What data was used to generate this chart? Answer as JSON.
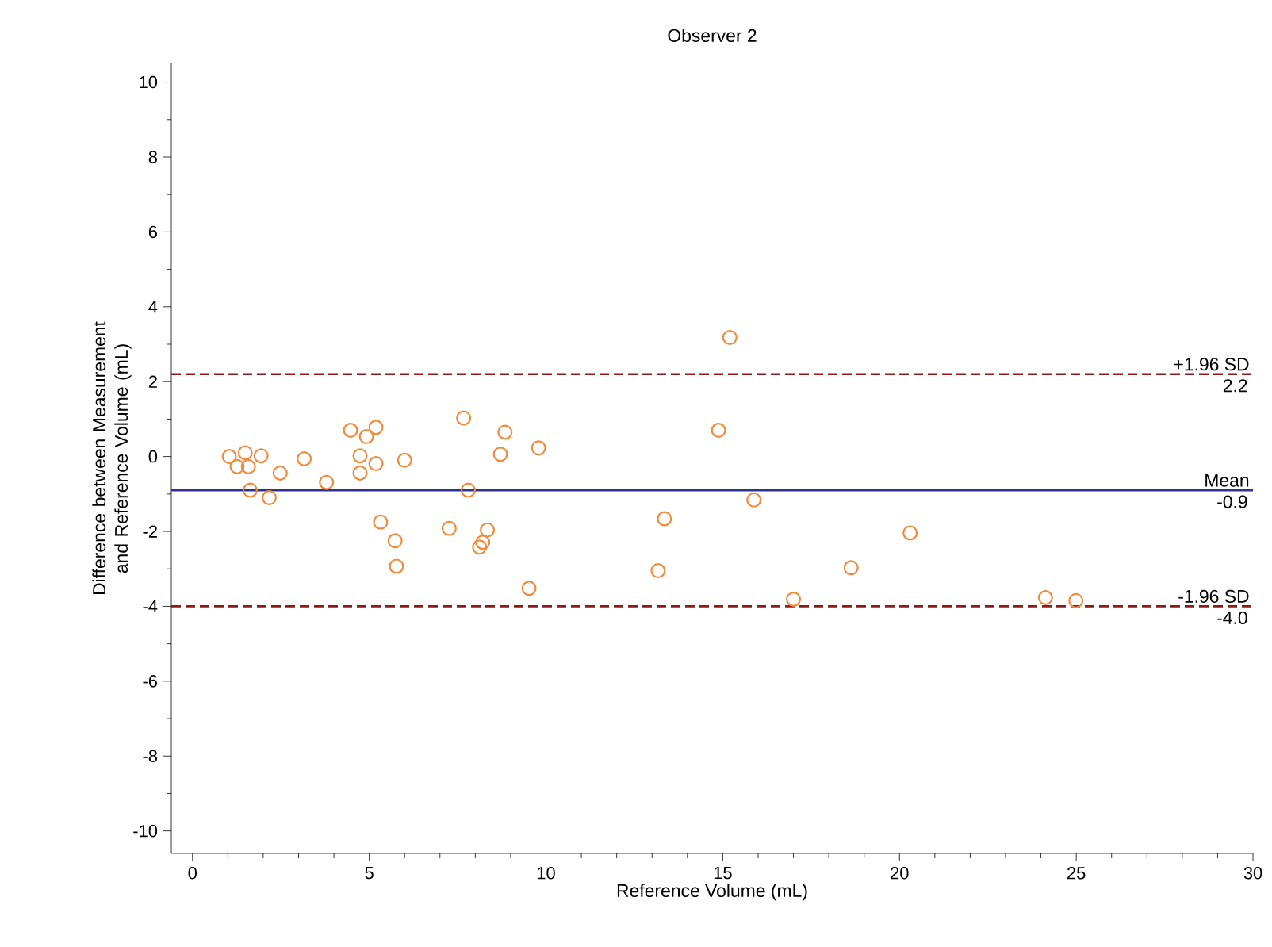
{
  "chart_data": {
    "type": "scatter",
    "title": "Observer 2",
    "xlabel": "Reference Volume (mL)",
    "ylabel": "Difference between Measurement and Reference Volume (mL)",
    "x": [
      1.04,
      1.26,
      1.49,
      1.58,
      1.63,
      1.94,
      2.17,
      2.48,
      3.16,
      3.79,
      4.47,
      4.74,
      4.74,
      4.92,
      5.19,
      5.19,
      5.32,
      5.73,
      5.77,
      6.0,
      7.26,
      7.67,
      7.8,
      8.12,
      8.21,
      8.34,
      8.71,
      8.84,
      9.52,
      9.79,
      13.17,
      13.35,
      14.88,
      15.2,
      15.88,
      17.0,
      18.63,
      20.3,
      24.13,
      24.99
    ],
    "series": [
      {
        "color": "#f28a3c",
        "values": [
          0.0,
          -0.27,
          0.1,
          -0.27,
          -0.9,
          0.02,
          -1.1,
          -0.44,
          -0.06,
          -0.69,
          0.7,
          0.02,
          -0.44,
          0.53,
          0.78,
          -0.19,
          -1.75,
          -2.25,
          -2.93,
          -0.1,
          -1.92,
          1.03,
          -0.9,
          -2.42,
          -2.29,
          -1.96,
          0.06,
          0.65,
          -3.52,
          0.23,
          -3.05,
          -1.66,
          0.7,
          3.18,
          -1.16,
          -3.81,
          -2.97,
          -2.04,
          -3.77,
          -3.85
        ]
      }
    ],
    "marker": "circle",
    "xlim": [
      -0.6,
      30
    ],
    "xticks": [
      0,
      5,
      10,
      15,
      20,
      25,
      30
    ],
    "ylim": [
      -10.6,
      10.5
    ],
    "yticks": [
      -10,
      -8,
      -6,
      -4,
      -2,
      0,
      2,
      4,
      6,
      8,
      10
    ],
    "ref_lines": [
      {
        "axis": "y",
        "value": 2.2,
        "label": "+1.96 SD",
        "color": "#8b1a1a",
        "line_style": "dashed"
      },
      {
        "axis": "y",
        "value": -0.9,
        "label": "Mean",
        "color": "#2e3192",
        "line_style": "solid"
      },
      {
        "axis": "y",
        "value": -4.0,
        "label": "-1.96 SD",
        "color": "#8b1a1a",
        "line_style": "dashed"
      }
    ],
    "annotations": [
      {
        "text": "2.2",
        "y": 2.2
      },
      {
        "text": "-0.9",
        "y": -0.9
      },
      {
        "text": "-4.0",
        "y": -4.0
      }
    ]
  }
}
